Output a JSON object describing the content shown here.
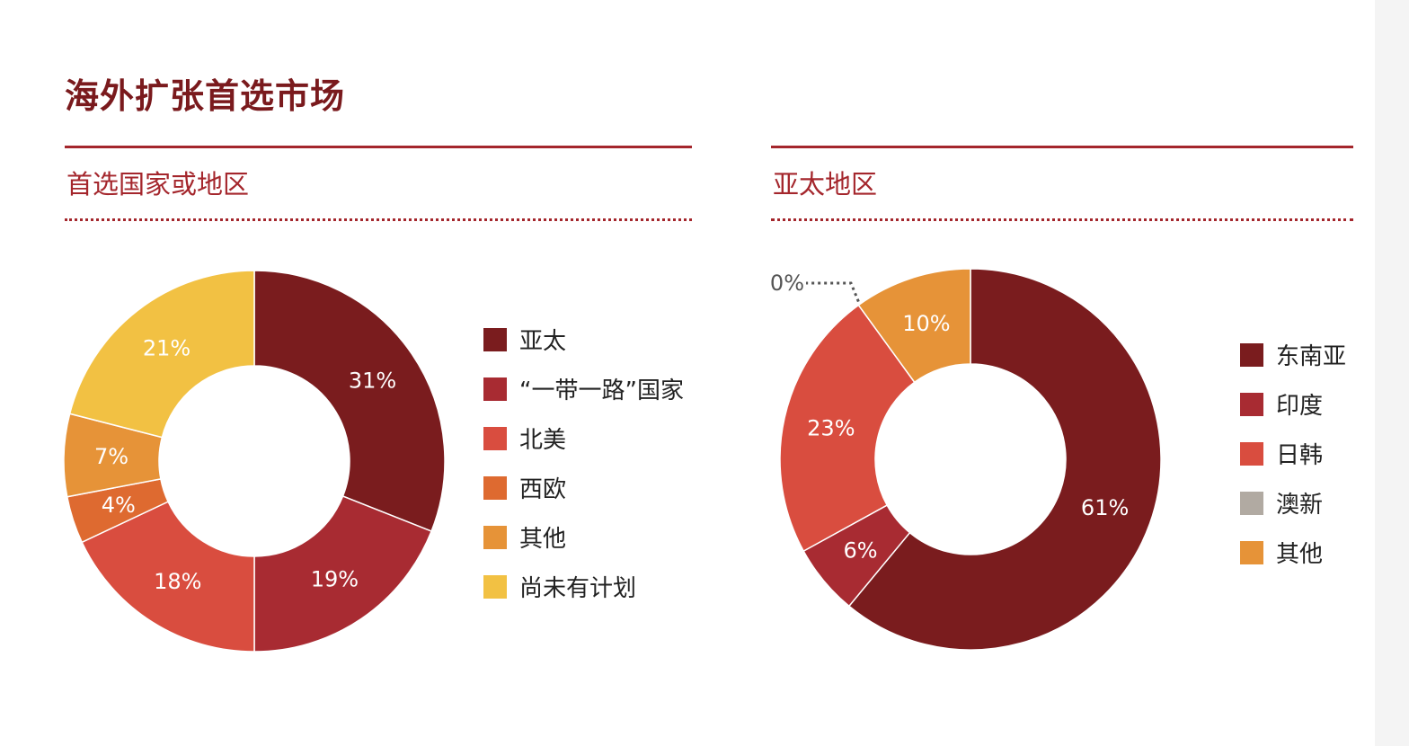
{
  "page": {
    "title": "海外扩张首选市场"
  },
  "colors": {
    "accent": "#a4262c",
    "title": "#7a1a1d"
  },
  "chart_data": [
    {
      "type": "pie",
      "variant": "donut",
      "title": "首选国家或地区",
      "legend_position": "right",
      "categories": [
        "亚太",
        "“一带一路”国家",
        "北美",
        "西欧",
        "其他",
        "尚未有计划"
      ],
      "values": [
        31,
        19,
        18,
        4,
        7,
        21
      ],
      "labels": [
        "31%",
        "19%",
        "18%",
        "4%",
        "7%",
        "21%"
      ],
      "colors": [
        "#7a1c1e",
        "#a82b32",
        "#d94d3f",
        "#de6a30",
        "#e69338",
        "#f2c143"
      ]
    },
    {
      "type": "pie",
      "variant": "donut",
      "title": "亚太地区",
      "legend_position": "right",
      "categories": [
        "东南亚",
        "印度",
        "日韩",
        "澳新",
        "其他"
      ],
      "values": [
        61,
        6,
        23,
        0,
        10
      ],
      "labels": [
        "61%",
        "6%",
        "23%",
        "0%",
        "10%"
      ],
      "colors": [
        "#7a1c1e",
        "#a82b32",
        "#d94d3f",
        "#b1aaa2",
        "#e69338"
      ]
    }
  ]
}
